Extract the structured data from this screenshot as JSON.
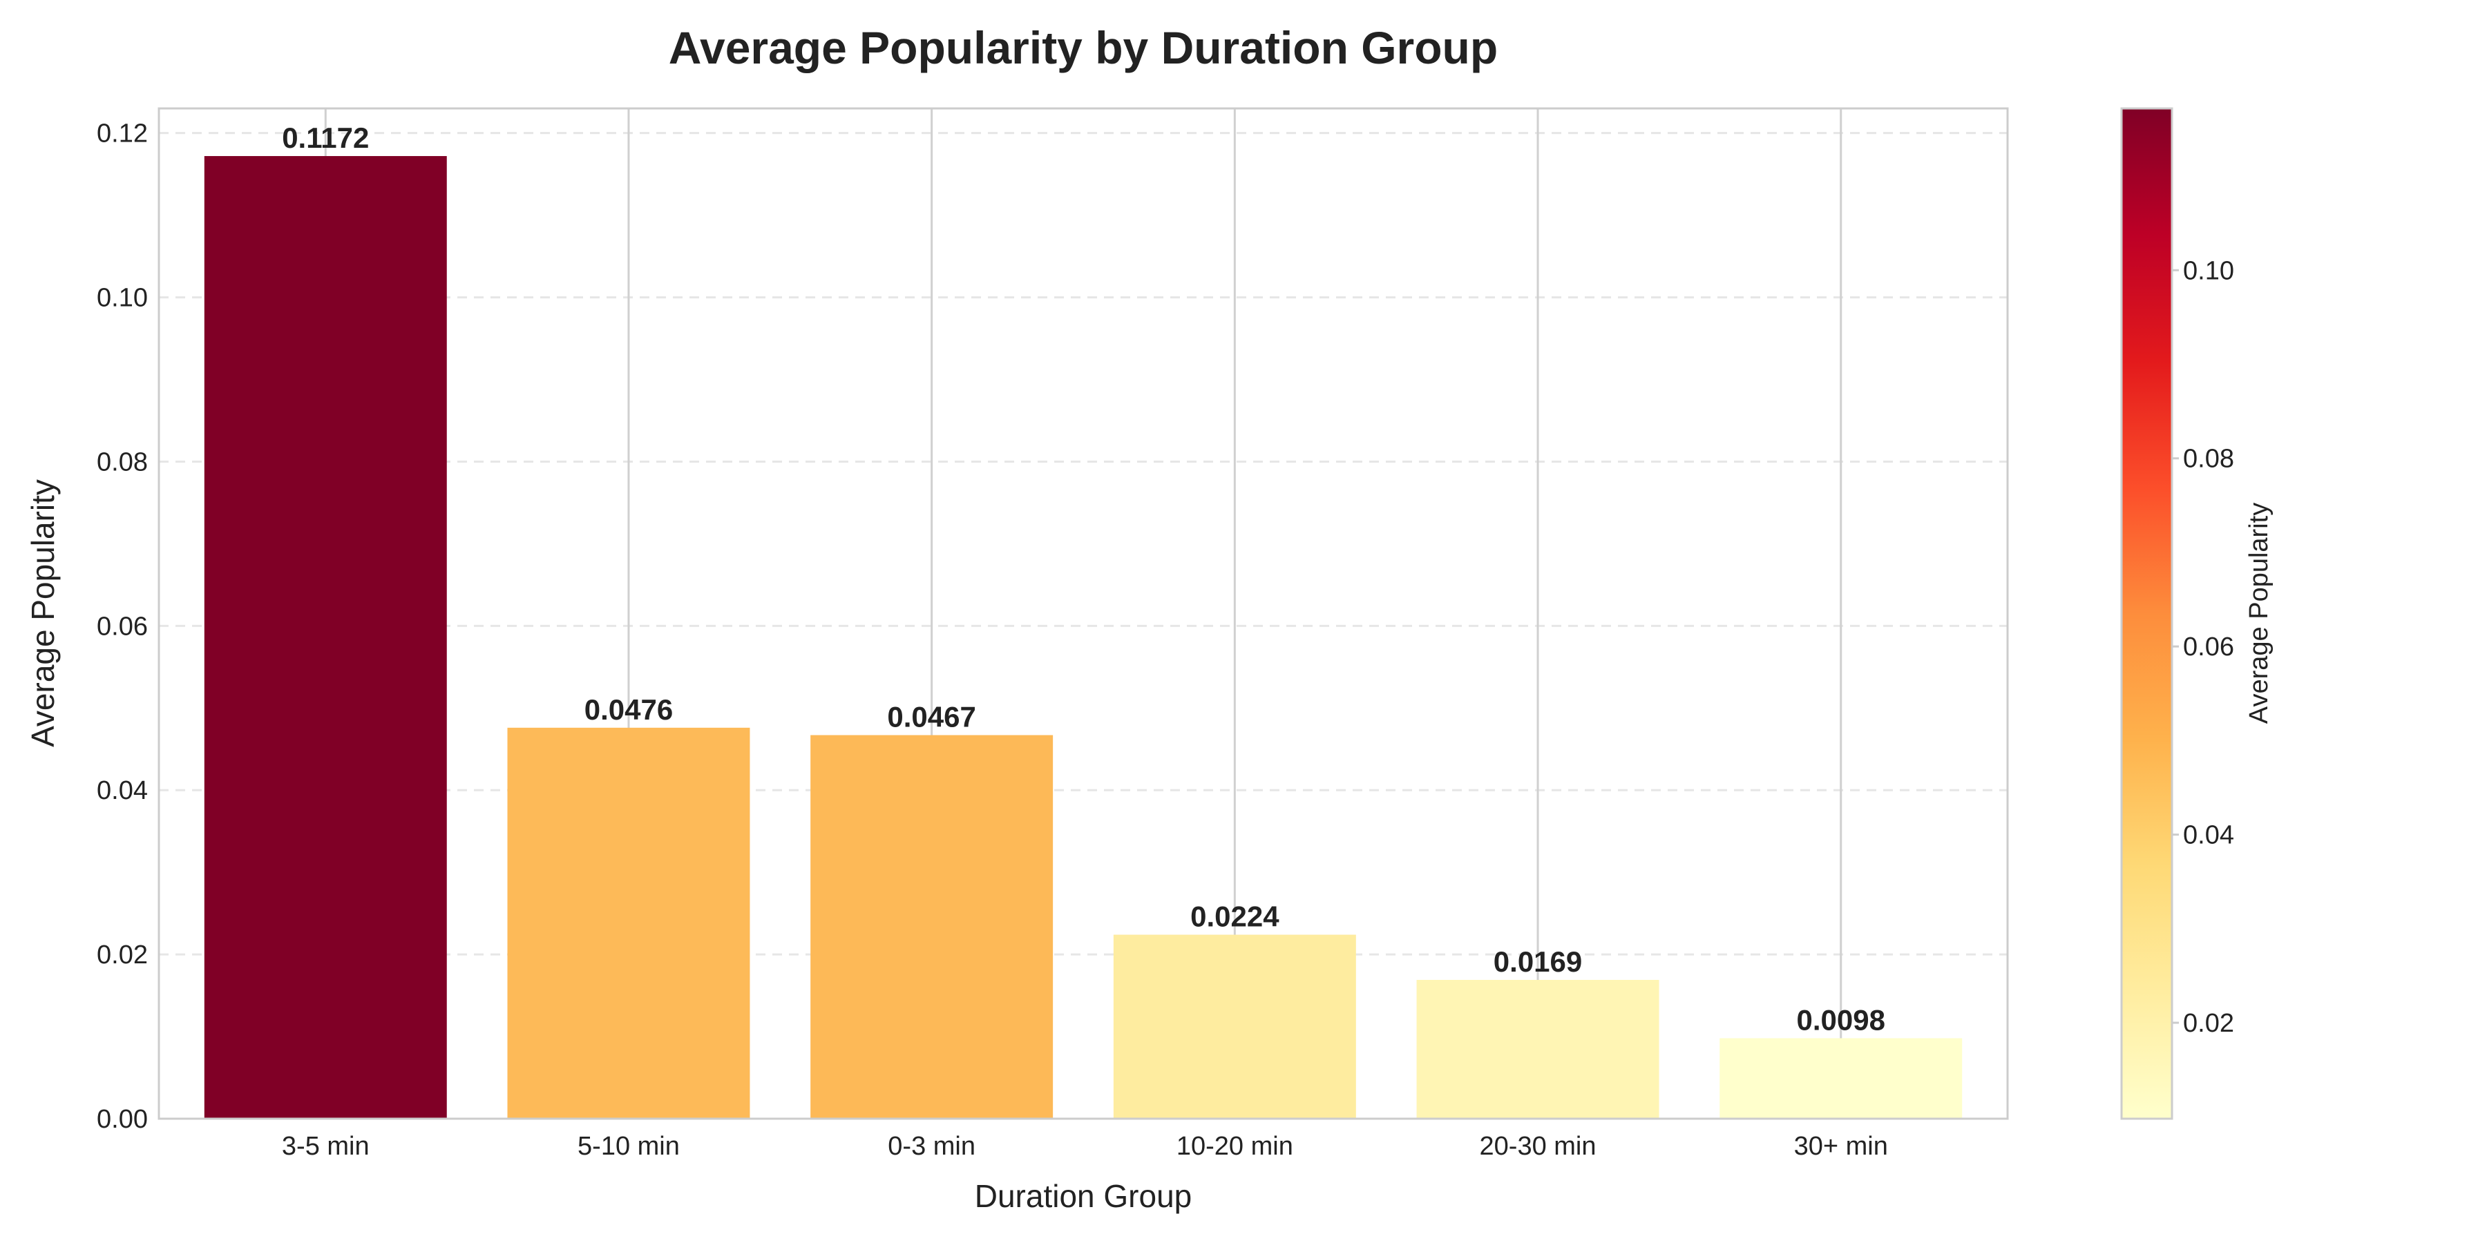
{
  "chart_data": {
    "type": "bar",
    "title": "Average Popularity by Duration Group",
    "xlabel": "Duration Group",
    "ylabel": "Average Popularity",
    "categories": [
      "3-5 min",
      "5-10 min",
      "0-3 min",
      "10-20 min",
      "20-30 min",
      "30+ min"
    ],
    "values": [
      0.1172,
      0.0476,
      0.0467,
      0.0224,
      0.0169,
      0.0098
    ],
    "data_labels": [
      "0.1172",
      "0.0476",
      "0.0467",
      "0.0224",
      "0.0169",
      "0.0098"
    ],
    "ylim": [
      0,
      0.123
    ],
    "y_ticks": [
      0.0,
      0.02,
      0.04,
      0.06,
      0.08,
      0.1,
      0.12
    ],
    "y_tick_labels": [
      "0.00",
      "0.02",
      "0.04",
      "0.06",
      "0.08",
      "0.10",
      "0.12"
    ],
    "grid": true,
    "colormap": "YlOrRd",
    "bar_colors": [
      "#800026",
      "#fdba58",
      "#fdb957",
      "#feec9f",
      "#fff5b4",
      "#ffffcc"
    ],
    "colorbar": {
      "label": "Average Popularity",
      "range": [
        0.0098,
        0.1172
      ],
      "ticks": [
        0.02,
        0.04,
        0.06,
        0.08,
        0.1
      ],
      "tick_labels": [
        "0.02",
        "0.04",
        "0.06",
        "0.08",
        "0.10"
      ],
      "stops": [
        "#ffffcc",
        "#ffeda0",
        "#fed976",
        "#feb24c",
        "#fd8d3c",
        "#fc4e2a",
        "#e31a1c",
        "#bd0026",
        "#800026"
      ]
    }
  }
}
